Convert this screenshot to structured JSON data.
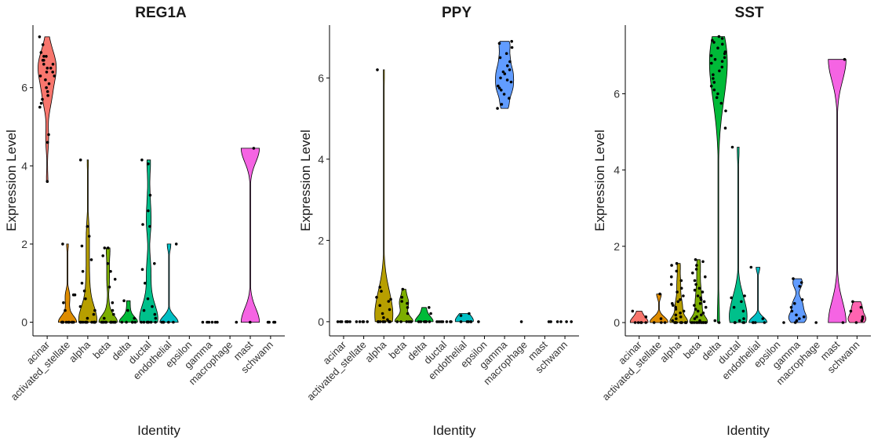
{
  "chart_data": [
    {
      "type": "violin",
      "title": "REG1A",
      "xlabel": "Identity",
      "ylabel": "Expression Level",
      "ylim": [
        -0.35,
        7.6
      ],
      "yticks": [
        0,
        2,
        4,
        6
      ],
      "categories": [
        "acinar",
        "activated_stellate",
        "alpha",
        "beta",
        "delta",
        "ductal",
        "endothelial",
        "epsilon",
        "gamma",
        "macrophage",
        "mast",
        "schwann"
      ],
      "colors": [
        "#F8766D",
        "#DE8C00",
        "#B79F00",
        "#7CAE00",
        "#00BA38",
        "#00C08B",
        "#00BFC4",
        "#00B4F0",
        "#619CFF",
        "#C77CFF",
        "#F564E3",
        "#FF64B0"
      ],
      "series": [
        {
          "name": "acinar",
          "values": [
            7.3,
            7.1,
            6.9,
            6.8,
            6.8,
            6.7,
            6.7,
            6.6,
            6.6,
            6.5,
            6.5,
            6.4,
            6.4,
            6.3,
            6.3,
            6.2,
            6.1,
            6.0,
            5.9,
            5.8,
            5.7,
            5.6,
            5.5,
            4.8,
            4.6,
            3.6
          ]
        },
        {
          "name": "activated_stellate",
          "values": [
            2.0,
            0.7,
            0.7,
            0.5,
            0.3,
            0,
            0,
            0,
            0,
            0,
            0,
            0,
            0,
            0,
            0
          ]
        },
        {
          "name": "alpha",
          "values": [
            4.15,
            2.45,
            2.2,
            1.95,
            1.6,
            1.3,
            1.0,
            0.8,
            0.6,
            0.4,
            0.3,
            0.2,
            0.1,
            0,
            0,
            0,
            0,
            0,
            0,
            0,
            0,
            0,
            0,
            0,
            0
          ]
        },
        {
          "name": "beta",
          "values": [
            1.9,
            1.9,
            1.7,
            1.5,
            1.3,
            1.1,
            0.9,
            0.5,
            0.3,
            0.2,
            0.1,
            0,
            0,
            0,
            0,
            0,
            0,
            0,
            0,
            0,
            0,
            0
          ]
        },
        {
          "name": "delta",
          "values": [
            0.55,
            0.3,
            0.1,
            0,
            0,
            0,
            0,
            0
          ]
        },
        {
          "name": "ductal",
          "values": [
            4.15,
            4.05,
            3.25,
            2.85,
            2.5,
            2.45,
            1.5,
            1.35,
            1.0,
            0.6,
            0.4,
            0.3,
            0.2,
            0.1,
            0,
            0,
            0,
            0,
            0,
            0,
            0
          ]
        },
        {
          "name": "endothelial",
          "values": [
            2.0,
            0,
            0,
            0,
            0,
            0
          ]
        },
        {
          "name": "epsilon",
          "values": []
        },
        {
          "name": "gamma",
          "values": [
            0,
            0,
            0,
            0,
            0,
            0
          ]
        },
        {
          "name": "macrophage",
          "values": [
            0
          ]
        },
        {
          "name": "mast",
          "values": [
            4.45,
            0
          ]
        },
        {
          "name": "schwann",
          "values": [
            0,
            0,
            0,
            0
          ]
        }
      ]
    },
    {
      "type": "violin",
      "title": "PPY",
      "xlabel": "Identity",
      "ylabel": "Expression Level",
      "ylim": [
        -0.35,
        7.3
      ],
      "yticks": [
        0,
        2,
        4,
        6
      ],
      "categories": [
        "acinar",
        "activated_stellate",
        "alpha",
        "beta",
        "delta",
        "ductal",
        "endothelial",
        "epsilon",
        "gamma",
        "macrophage",
        "mast",
        "schwann"
      ],
      "colors": [
        "#F8766D",
        "#DE8C00",
        "#B79F00",
        "#7CAE00",
        "#00BA38",
        "#00C08B",
        "#00BFC4",
        "#00B4F0",
        "#619CFF",
        "#C77CFF",
        "#F564E3",
        "#FF64B0"
      ],
      "series": [
        {
          "name": "acinar",
          "values": [
            0,
            0,
            0,
            0,
            0,
            0,
            0
          ]
        },
        {
          "name": "activated_stellate",
          "values": [
            0,
            0,
            0,
            0,
            0
          ]
        },
        {
          "name": "alpha",
          "values": [
            6.2,
            0.85,
            0.75,
            0.6,
            0.55,
            0.5,
            0.4,
            0.3,
            0.2,
            0.1,
            0.05,
            0,
            0,
            0,
            0,
            0,
            0,
            0,
            0,
            0,
            0
          ]
        },
        {
          "name": "beta",
          "values": [
            0.8,
            0.6,
            0.5,
            0.45,
            0.35,
            0.2,
            0,
            0,
            0,
            0,
            0,
            0
          ]
        },
        {
          "name": "delta",
          "values": [
            0.35,
            0.2,
            0,
            0,
            0,
            0,
            0,
            0
          ]
        },
        {
          "name": "ductal",
          "values": [
            0,
            0,
            0,
            0,
            0,
            0,
            0
          ]
        },
        {
          "name": "endothelial",
          "values": [
            0.2,
            0.15,
            0,
            0,
            0,
            0,
            0
          ]
        },
        {
          "name": "epsilon",
          "values": [
            0
          ]
        },
        {
          "name": "gamma",
          "values": [
            6.9,
            6.85,
            6.75,
            6.6,
            6.5,
            6.4,
            6.3,
            6.2,
            6.15,
            6.1,
            6.0,
            5.95,
            5.9,
            5.8,
            5.75,
            5.7,
            5.6,
            5.5,
            5.35,
            5.25
          ]
        },
        {
          "name": "macrophage",
          "values": [
            0
          ]
        },
        {
          "name": "mast",
          "values": [
            0,
            0
          ]
        },
        {
          "name": "schwann",
          "values": [
            0,
            0,
            0,
            0
          ]
        }
      ]
    },
    {
      "type": "violin",
      "title": "SST",
      "xlabel": "Identity",
      "ylabel": "Expression Level",
      "ylim": [
        -0.35,
        7.8
      ],
      "yticks": [
        0,
        2,
        4,
        6
      ],
      "categories": [
        "acinar",
        "activated_stellate",
        "alpha",
        "beta",
        "delta",
        "ductal",
        "endothelial",
        "epsilon",
        "gamma",
        "macrophage",
        "mast",
        "schwann"
      ],
      "colors": [
        "#F8766D",
        "#DE8C00",
        "#B79F00",
        "#7CAE00",
        "#00BA38",
        "#00C08B",
        "#00BFC4",
        "#00B4F0",
        "#619CFF",
        "#C77CFF",
        "#F564E3",
        "#FF64B0"
      ],
      "series": [
        {
          "name": "acinar",
          "values": [
            0.3,
            0.15,
            0,
            0,
            0,
            0,
            0
          ]
        },
        {
          "name": "activated_stellate",
          "values": [
            0.75,
            0.1,
            0,
            0,
            0
          ]
        },
        {
          "name": "alpha",
          "values": [
            1.55,
            1.5,
            1.35,
            1.2,
            1.1,
            1.0,
            0.9,
            0.8,
            0.7,
            0.6,
            0.55,
            0.5,
            0.45,
            0.4,
            0.35,
            0.3,
            0.25,
            0.2,
            0.15,
            0.1,
            0.05,
            0,
            0,
            0,
            0,
            0,
            0,
            0,
            0,
            0,
            0,
            0
          ]
        },
        {
          "name": "beta",
          "values": [
            1.65,
            1.6,
            1.5,
            1.4,
            1.3,
            1.2,
            1.1,
            1.0,
            0.9,
            0.85,
            0.8,
            0.7,
            0.65,
            0.6,
            0.55,
            0.5,
            0.45,
            0.4,
            0.35,
            0.3,
            0.25,
            0.2,
            0.15,
            0.1,
            0.05,
            0,
            0,
            0,
            0,
            0,
            0,
            0,
            0,
            0,
            0,
            0,
            0,
            0
          ]
        },
        {
          "name": "delta",
          "values": [
            7.5,
            7.45,
            7.4,
            7.35,
            7.3,
            7.2,
            7.1,
            7.05,
            7.0,
            6.95,
            6.9,
            6.85,
            6.8,
            6.7,
            6.6,
            6.5,
            6.4,
            6.3,
            6.2,
            6.1,
            6.0,
            5.9,
            5.75,
            5.55,
            5.1,
            0.05,
            0
          ]
        },
        {
          "name": "ductal",
          "values": [
            4.6,
            0.7,
            0.65,
            0.55,
            0.4,
            0.3,
            0.1,
            0.05,
            0,
            0,
            0,
            0,
            0
          ]
        },
        {
          "name": "endothelial",
          "values": [
            1.45,
            0.1,
            0,
            0,
            0,
            0
          ]
        },
        {
          "name": "epsilon",
          "values": [
            0
          ]
        },
        {
          "name": "gamma",
          "values": [
            1.15,
            1.05,
            0.95,
            0.6,
            0.5,
            0.4,
            0.3,
            0.2,
            0.15,
            0.1,
            0.05,
            0
          ]
        },
        {
          "name": "macrophage",
          "values": [
            0
          ]
        },
        {
          "name": "mast",
          "values": [
            6.9,
            0
          ]
        },
        {
          "name": "schwann",
          "values": [
            0.55,
            0.4,
            0.3,
            0.15,
            0.1,
            0.05,
            0
          ]
        }
      ]
    }
  ]
}
